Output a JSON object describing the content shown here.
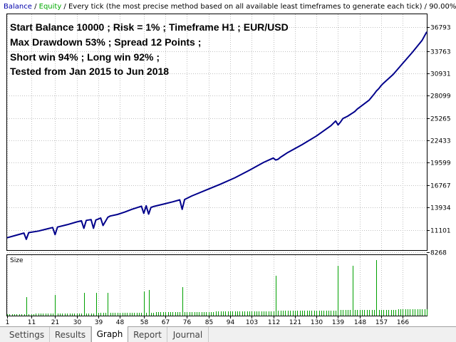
{
  "legend": {
    "balance": "Balance",
    "sep1": " / ",
    "equity": "Equity",
    "rest": " / Every tick (the most precise method based on all available least timeframes to generate each tick) / 90.00%"
  },
  "annotations": [
    "Start Balance 10000 ; Risk = 1% ; Timeframe H1 ; EUR/USD",
    "Max Drawdown 53% ; Spread 12 Points ;",
    "Short win 94% ; Long win 92% ;",
    "Tested from Jan 2015 to Jun 2018"
  ],
  "size_label": "Size",
  "tabs": [
    {
      "label": "Settings",
      "active": false
    },
    {
      "label": "Results",
      "active": false
    },
    {
      "label": "Graph",
      "active": true
    },
    {
      "label": "Report",
      "active": false
    },
    {
      "label": "Journal",
      "active": false
    }
  ],
  "colors": {
    "balance_line": "#00008b",
    "size_bars": "#00a000",
    "grid": "#c0c0c0"
  },
  "chart_data": {
    "type": "line",
    "y_axis_ticks": [
      "36793",
      "33763",
      "30931",
      "28099",
      "25265",
      "22433",
      "19599",
      "16767",
      "13934",
      "11101",
      "8268"
    ],
    "x_axis_ticks": [
      "1",
      "11",
      "21",
      "30",
      "39",
      "48",
      "58",
      "67",
      "76",
      "85",
      "94",
      "103",
      "112",
      "121",
      "130",
      "139",
      "148",
      "157",
      "166"
    ],
    "ylim": [
      8268,
      36793
    ],
    "xlim": [
      1,
      176
    ],
    "grid": true,
    "series": [
      {
        "x": [
          1,
          4,
          8,
          9,
          10,
          14,
          18,
          20,
          21,
          22,
          26,
          30,
          32,
          33,
          34,
          36,
          37,
          38,
          40,
          41,
          43,
          44,
          47,
          50,
          53,
          57,
          58,
          59,
          60,
          61,
          62,
          66,
          70,
          73,
          74,
          75,
          78,
          84,
          90,
          96,
          102,
          108,
          112,
          113,
          114,
          115,
          116,
          118,
          124,
          130,
          136,
          138,
          139,
          140,
          141,
          143,
          144,
          145,
          146,
          147,
          149,
          152,
          154,
          155,
          156,
          157,
          158,
          162,
          166,
          170,
          174,
          176
        ],
        "y": [
          10100,
          10350,
          10700,
          9900,
          10750,
          10950,
          11250,
          11400,
          10500,
          11450,
          11750,
          12100,
          12250,
          11300,
          12300,
          12400,
          11300,
          12350,
          12600,
          11650,
          12700,
          12850,
          13050,
          13350,
          13700,
          14100,
          13200,
          14150,
          13100,
          13950,
          14050,
          14350,
          14650,
          14900,
          13700,
          14950,
          15400,
          16150,
          16900,
          17700,
          18650,
          19650,
          20200,
          19950,
          20050,
          20300,
          20500,
          20900,
          21900,
          23000,
          24300,
          24900,
          24400,
          24750,
          25200,
          25500,
          25700,
          25900,
          26100,
          26400,
          26850,
          27550,
          28300,
          28700,
          29000,
          29400,
          29700,
          30800,
          32200,
          33600,
          35100,
          36200
        ]
      }
    ]
  }
}
